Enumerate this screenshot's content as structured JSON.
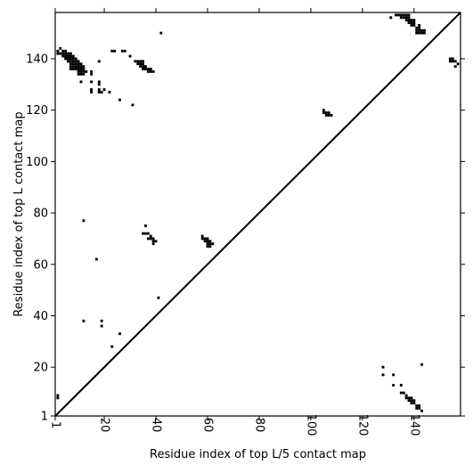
{
  "chart_data": {
    "type": "heatmap",
    "title": "",
    "xlabel": "Residue index of top L/5 contact map",
    "ylabel": "Residue index of top L contact map",
    "xlim": [
      1,
      158
    ],
    "ylim": [
      1,
      158
    ],
    "xticks": [
      {
        "value": 1,
        "label": "1"
      },
      {
        "value": 20,
        "label": "20"
      },
      {
        "value": 40,
        "label": "40"
      },
      {
        "value": 60,
        "label": "60"
      },
      {
        "value": 80,
        "label": "80"
      },
      {
        "value": 100,
        "label": "100"
      },
      {
        "value": 120,
        "label": "120"
      },
      {
        "value": 140,
        "label": "140"
      }
    ],
    "yticks": [
      {
        "value": 1,
        "label": "1"
      },
      {
        "value": 20,
        "label": "20"
      },
      {
        "value": 40,
        "label": "40"
      },
      {
        "value": 60,
        "label": "60"
      },
      {
        "value": 80,
        "label": "80"
      },
      {
        "value": 100,
        "label": "100"
      },
      {
        "value": 120,
        "label": "120"
      },
      {
        "value": 140,
        "label": "140"
      }
    ],
    "diagonal": true,
    "contact_color": "#000000",
    "upper_left_points": [
      [
        2,
        143
      ],
      [
        2,
        142
      ],
      [
        3,
        144
      ],
      [
        3,
        142
      ],
      [
        4,
        143
      ],
      [
        4,
        142
      ],
      [
        4,
        141
      ],
      [
        5,
        143
      ],
      [
        5,
        142
      ],
      [
        5,
        141
      ],
      [
        5,
        140
      ],
      [
        6,
        142
      ],
      [
        6,
        141
      ],
      [
        6,
        140
      ],
      [
        6,
        139
      ],
      [
        7,
        142
      ],
      [
        7,
        141
      ],
      [
        7,
        140
      ],
      [
        7,
        139
      ],
      [
        7,
        138
      ],
      [
        7,
        137
      ],
      [
        7,
        136
      ],
      [
        8,
        141
      ],
      [
        8,
        140
      ],
      [
        8,
        139
      ],
      [
        8,
        138
      ],
      [
        8,
        137
      ],
      [
        8,
        136
      ],
      [
        9,
        140
      ],
      [
        9,
        139
      ],
      [
        9,
        138
      ],
      [
        9,
        137
      ],
      [
        9,
        136
      ],
      [
        10,
        139
      ],
      [
        10,
        138
      ],
      [
        10,
        137
      ],
      [
        10,
        136
      ],
      [
        10,
        135
      ],
      [
        10,
        134
      ],
      [
        11,
        138
      ],
      [
        11,
        137
      ],
      [
        11,
        136
      ],
      [
        11,
        135
      ],
      [
        11,
        134
      ],
      [
        12,
        137
      ],
      [
        12,
        136
      ],
      [
        12,
        135
      ],
      [
        12,
        134
      ],
      [
        11,
        131
      ],
      [
        13,
        135
      ],
      [
        15,
        135
      ],
      [
        15,
        134
      ],
      [
        15,
        131
      ],
      [
        15,
        128
      ],
      [
        15,
        127
      ],
      [
        18,
        139
      ],
      [
        18,
        131
      ],
      [
        18,
        130
      ],
      [
        18,
        128
      ],
      [
        18,
        127
      ],
      [
        19,
        127
      ],
      [
        20,
        128
      ],
      [
        22,
        127
      ],
      [
        23,
        143
      ],
      [
        24,
        143
      ],
      [
        26,
        124
      ],
      [
        27,
        143
      ],
      [
        28,
        143
      ],
      [
        30,
        141
      ],
      [
        31,
        122
      ],
      [
        32,
        139
      ],
      [
        33,
        139
      ],
      [
        33,
        138
      ],
      [
        34,
        139
      ],
      [
        34,
        138
      ],
      [
        34,
        137
      ],
      [
        35,
        139
      ],
      [
        35,
        138
      ],
      [
        35,
        137
      ],
      [
        35,
        136
      ],
      [
        36,
        137
      ],
      [
        36,
        136
      ],
      [
        37,
        136
      ],
      [
        37,
        135
      ],
      [
        38,
        136
      ],
      [
        38,
        135
      ],
      [
        39,
        135
      ],
      [
        42,
        150
      ],
      [
        2,
        9
      ],
      [
        2,
        8
      ],
      [
        12,
        77
      ],
      [
        12,
        38
      ],
      [
        17,
        62
      ],
      [
        19,
        38
      ],
      [
        19,
        36
      ],
      [
        23,
        28
      ],
      [
        26,
        33
      ],
      [
        35,
        72
      ],
      [
        36,
        75
      ],
      [
        36,
        72
      ],
      [
        37,
        72
      ],
      [
        37,
        70
      ],
      [
        38,
        71
      ],
      [
        38,
        70
      ],
      [
        39,
        70
      ],
      [
        39,
        69
      ],
      [
        39,
        68
      ],
      [
        40,
        69
      ],
      [
        41,
        47
      ],
      [
        58,
        71
      ],
      [
        58,
        70
      ],
      [
        59,
        70
      ],
      [
        59,
        69
      ],
      [
        60,
        70
      ],
      [
        60,
        69
      ],
      [
        60,
        68
      ],
      [
        60,
        67
      ],
      [
        61,
        69
      ],
      [
        61,
        68
      ],
      [
        61,
        67
      ],
      [
        62,
        68
      ],
      [
        105,
        120
      ],
      [
        105,
        119
      ],
      [
        106,
        119
      ],
      [
        106,
        118
      ],
      [
        107,
        119
      ],
      [
        107,
        118
      ],
      [
        108,
        118
      ],
      [
        131,
        156
      ],
      [
        133,
        157
      ],
      [
        134,
        157
      ],
      [
        135,
        157
      ],
      [
        135,
        156
      ],
      [
        136,
        157
      ],
      [
        136,
        156
      ],
      [
        137,
        157
      ],
      [
        137,
        156
      ],
      [
        137,
        155
      ],
      [
        138,
        157
      ],
      [
        138,
        156
      ],
      [
        138,
        155
      ],
      [
        138,
        154
      ],
      [
        139,
        155
      ],
      [
        139,
        154
      ],
      [
        139,
        153
      ],
      [
        140,
        155
      ],
      [
        140,
        154
      ],
      [
        140,
        153
      ],
      [
        141,
        152
      ],
      [
        141,
        151
      ],
      [
        141,
        150
      ],
      [
        142,
        153
      ],
      [
        142,
        152
      ],
      [
        142,
        151
      ],
      [
        142,
        150
      ],
      [
        143,
        151
      ],
      [
        143,
        150
      ],
      [
        144,
        151
      ],
      [
        144,
        150
      ],
      [
        154,
        140
      ],
      [
        154,
        139
      ],
      [
        155,
        140
      ],
      [
        155,
        139
      ],
      [
        156,
        139
      ],
      [
        156,
        137
      ],
      [
        157,
        138
      ]
    ],
    "lower_right_points": [
      [
        128,
        20
      ],
      [
        128,
        17
      ],
      [
        132,
        17
      ],
      [
        132,
        13
      ],
      [
        135,
        13
      ],
      [
        135,
        10
      ],
      [
        136,
        10
      ],
      [
        137,
        9
      ],
      [
        137,
        8
      ],
      [
        138,
        8
      ],
      [
        138,
        7
      ],
      [
        139,
        8
      ],
      [
        139,
        7
      ],
      [
        139,
        6
      ],
      [
        140,
        7
      ],
      [
        140,
        6
      ],
      [
        141,
        5
      ],
      [
        141,
        4
      ],
      [
        142,
        5
      ],
      [
        142,
        4
      ],
      [
        143,
        21
      ],
      [
        143,
        3
      ]
    ]
  }
}
